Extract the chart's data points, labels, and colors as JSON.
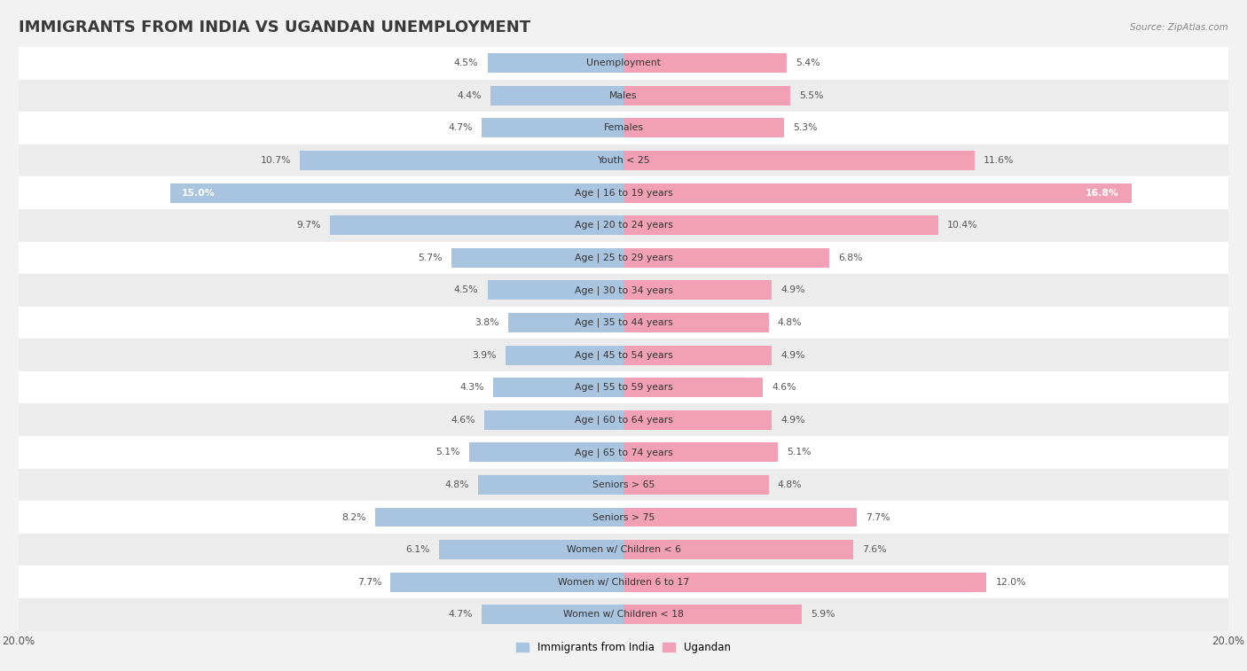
{
  "title": "IMMIGRANTS FROM INDIA VS UGANDAN UNEMPLOYMENT",
  "source": "Source: ZipAtlas.com",
  "categories": [
    "Unemployment",
    "Males",
    "Females",
    "Youth < 25",
    "Age | 16 to 19 years",
    "Age | 20 to 24 years",
    "Age | 25 to 29 years",
    "Age | 30 to 34 years",
    "Age | 35 to 44 years",
    "Age | 45 to 54 years",
    "Age | 55 to 59 years",
    "Age | 60 to 64 years",
    "Age | 65 to 74 years",
    "Seniors > 65",
    "Seniors > 75",
    "Women w/ Children < 6",
    "Women w/ Children 6 to 17",
    "Women w/ Children < 18"
  ],
  "india_values": [
    4.5,
    4.4,
    4.7,
    10.7,
    15.0,
    9.7,
    5.7,
    4.5,
    3.8,
    3.9,
    4.3,
    4.6,
    5.1,
    4.8,
    8.2,
    6.1,
    7.7,
    4.7
  ],
  "uganda_values": [
    5.4,
    5.5,
    5.3,
    11.6,
    16.8,
    10.4,
    6.8,
    4.9,
    4.8,
    4.9,
    4.6,
    4.9,
    5.1,
    4.8,
    7.7,
    7.6,
    12.0,
    5.9
  ],
  "india_color": "#a8c4df",
  "uganda_color": "#f2a0b5",
  "row_colors": [
    "#ffffff",
    "#ececec"
  ],
  "xlim": 20.0,
  "legend_india": "Immigrants from India",
  "legend_uganda": "Ugandan",
  "title_fontsize": 13,
  "label_fontsize": 7.8,
  "value_fontsize": 7.8,
  "bar_height": 0.6,
  "inside_label_indices": [
    4
  ],
  "background_color": "#f2f2f2"
}
